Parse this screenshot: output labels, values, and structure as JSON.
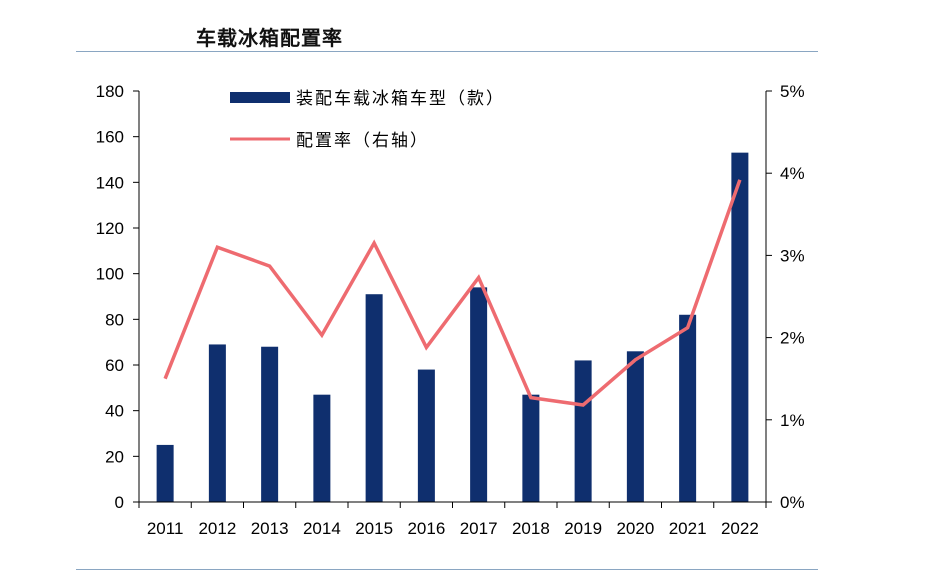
{
  "title": "车载冰箱配置率",
  "colors": {
    "bar": "#0f2f6e",
    "line": "#ee6b70",
    "axis": "#000000",
    "rule": "#8aa6c2"
  },
  "chart_data": {
    "type": "bar+line",
    "categories": [
      "2011",
      "2012",
      "2013",
      "2014",
      "2015",
      "2016",
      "2017",
      "2018",
      "2019",
      "2020",
      "2021",
      "2022"
    ],
    "series": [
      {
        "name": "装配车载冰箱车型（款）",
        "type": "bar",
        "axis": "left",
        "values": [
          25,
          69,
          68,
          47,
          91,
          58,
          94,
          47,
          62,
          66,
          82,
          153
        ]
      },
      {
        "name": "配置率（右轴）",
        "type": "line",
        "axis": "right",
        "values": [
          1.5,
          3.1,
          2.87,
          2.03,
          3.15,
          1.88,
          2.73,
          1.27,
          1.18,
          1.73,
          2.12,
          3.92
        ]
      }
    ],
    "y_left": {
      "min": 0,
      "max": 180,
      "step": 20,
      "ticks": [
        "0",
        "20",
        "40",
        "60",
        "80",
        "100",
        "120",
        "140",
        "160",
        "180"
      ]
    },
    "y_right": {
      "min": 0,
      "max": 5,
      "step": 1,
      "ticks": [
        "0%",
        "1%",
        "2%",
        "3%",
        "4%",
        "5%"
      ]
    },
    "legend_position": "top-center",
    "grid": false
  }
}
